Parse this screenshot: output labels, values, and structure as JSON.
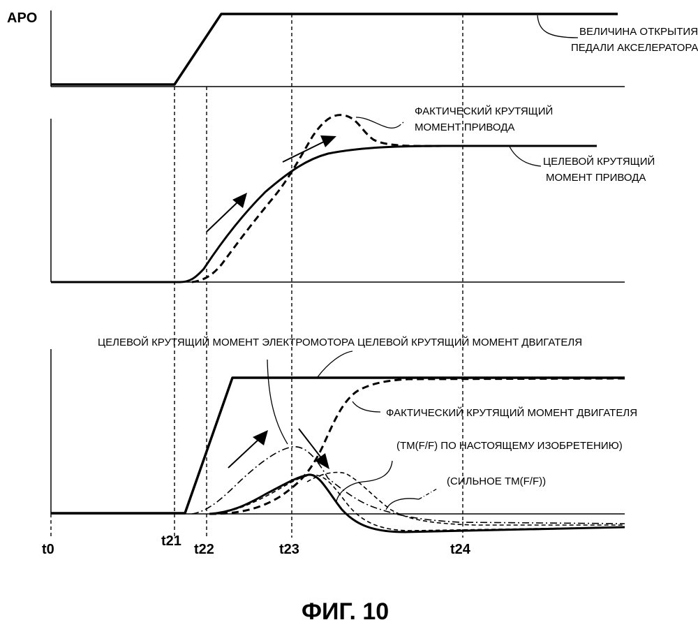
{
  "figure": {
    "caption": "ФИГ. 10",
    "y_label_top": "APO",
    "time_marks": [
      "t0",
      "t21",
      "t22",
      "t23",
      "t24"
    ],
    "panels": {
      "pedal": {
        "label_line1": "ВЕЛИЧИНА ОТКРЫТИЯ",
        "label_line2": "ПЕДАЛИ АКСЕЛЕРАТОРА"
      },
      "drive": {
        "actual_line1": "ФАКТИЧЕСКИЙ КРУТЯЩИЙ",
        "actual_line2": "МОМЕНТ ПРИВОДА",
        "target_line1": "ЦЕЛЕВОЙ КРУТЯЩИЙ",
        "target_line2": "МОМЕНТ ПРИВОДА"
      },
      "engine": {
        "motor_target": "ЦЕЛЕВОЙ КРУТЯЩИЙ МОМЕНТ ЭЛЕКТРОМОТОРА",
        "engine_target": "ЦЕЛЕВОЙ КРУТЯЩИЙ МОМЕНТ ДВИГАТЕЛЯ",
        "engine_actual": "ФАКТИЧЕСКИЙ КРУТЯЩИЙ МОМЕНТ ДВИГАТЕЛЯ",
        "tm_invention": "(ТМ(F/F) ПО НАСТОЯЩЕМУ ИЗОБРЕТЕНИЮ)",
        "tm_strong": "(СИЛЬНОЕ ТМ(F/F))"
      }
    }
  }
}
